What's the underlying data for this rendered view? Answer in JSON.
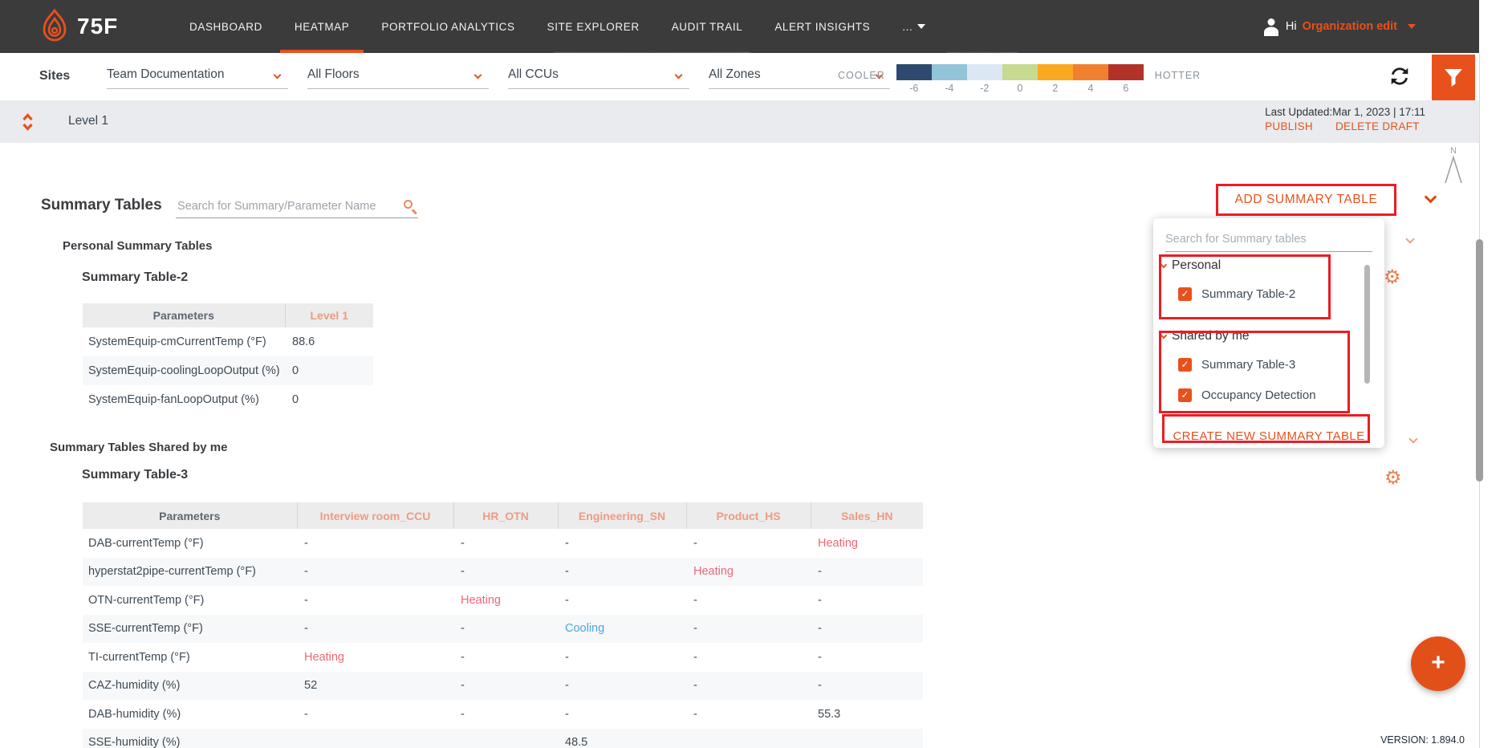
{
  "nav": {
    "brand": "75F",
    "items": [
      {
        "label": "DASHBOARD",
        "active": false
      },
      {
        "label": "HEATMAP",
        "active": true
      },
      {
        "label": "PORTFOLIO ANALYTICS",
        "active": false
      },
      {
        "label": "SITE EXPLORER",
        "active": false
      },
      {
        "label": "AUDIT TRAIL",
        "active": false
      },
      {
        "label": "ALERT INSIGHTS",
        "active": false
      },
      {
        "label": "...",
        "active": false,
        "caret": true
      }
    ],
    "user": {
      "greeting": "Hi",
      "org_link": "Organization edit"
    }
  },
  "filter_bar": {
    "sites_label": "Sites",
    "dropdowns": [
      {
        "name": "site",
        "value": "Team Documentation"
      },
      {
        "name": "floors",
        "value": "All Floors"
      },
      {
        "name": "ccus",
        "value": "All CCUs"
      },
      {
        "name": "zones",
        "value": "All Zones"
      }
    ],
    "legend": {
      "cooler": "COOLER",
      "hotter": "HOTTER",
      "ticks": [
        "-6",
        "-4",
        "-2",
        "0",
        "2",
        "4",
        "6"
      ],
      "colors": [
        "#2D4A6E",
        "#91C4D9",
        "#DBE8F4",
        "#C6DA90",
        "#FBA821",
        "#F08030",
        "#B23228"
      ]
    }
  },
  "level_bar": {
    "title": "Level 1",
    "last_updated": "Last Updated:Mar 1, 2023 | 17:11",
    "publish": "PUBLISH",
    "delete_draft": "DELETE DRAFT"
  },
  "summary": {
    "title": "Summary Tables",
    "search_placeholder": "Search for Summary/Parameter Name",
    "add_button": "ADD SUMMARY TABLE",
    "personal_heading": "Personal Summary Tables",
    "shared_heading": "Summary Tables Shared by me",
    "table2": {
      "title": "Summary Table-2",
      "columns": [
        "Parameters",
        "Level 1"
      ],
      "rows": [
        [
          "SystemEquip-cmCurrentTemp (°F)",
          "88.6"
        ],
        [
          "SystemEquip-coolingLoopOutput (%)",
          "0"
        ],
        [
          "SystemEquip-fanLoopOutput (%)",
          "0"
        ]
      ]
    },
    "table3": {
      "title": "Summary Table-3",
      "columns": [
        "Parameters",
        "Interview room_CCU",
        "HR_OTN",
        "Engineering_SN",
        "Product_HS",
        "Sales_HN"
      ],
      "rows": [
        [
          "DAB-currentTemp (°F)",
          "-",
          "-",
          "-",
          "-",
          {
            "text": "Heating",
            "style": "heating"
          }
        ],
        [
          "hyperstat2pipe-currentTemp (°F)",
          "-",
          "-",
          "-",
          {
            "text": "Heating",
            "style": "heating"
          },
          "-"
        ],
        [
          "OTN-currentTemp (°F)",
          "-",
          {
            "text": "Heating",
            "style": "heating"
          },
          "-",
          "-",
          "-"
        ],
        [
          "SSE-currentTemp (°F)",
          "-",
          "-",
          {
            "text": "Cooling",
            "style": "cooling"
          },
          "-",
          "-"
        ],
        [
          "TI-currentTemp (°F)",
          {
            "text": "Heating",
            "style": "heating"
          },
          "-",
          "-",
          "-",
          "-"
        ],
        [
          "CAZ-humidity (%)",
          "52",
          "-",
          "-",
          "-",
          "-"
        ],
        [
          "DAB-humidity (%)",
          "-",
          "-",
          "-",
          "-",
          "55.3"
        ],
        [
          "SSE-humidity (%)",
          "",
          "",
          "48.5",
          "",
          ""
        ]
      ]
    }
  },
  "dropdown_panel": {
    "search_placeholder": "Search for Summary tables",
    "groups": [
      {
        "label": "Personal",
        "items": [
          {
            "label": "Summary Table-2",
            "checked": true
          }
        ]
      },
      {
        "label": "Shared by me",
        "items": [
          {
            "label": "Summary Table-3",
            "checked": true
          },
          {
            "label": "Occupancy Detection",
            "checked": true
          }
        ]
      }
    ],
    "create_button": "CREATE NEW SUMMARY TABLE"
  },
  "footer": {
    "version": "VERSION: 1.894.0"
  },
  "colors": {
    "accent": "#E8511C",
    "heating": "#EE6676",
    "cooling": "#4BA5E1",
    "annotation": "#EC1C24",
    "nav_bg": "#3B3B3B"
  }
}
